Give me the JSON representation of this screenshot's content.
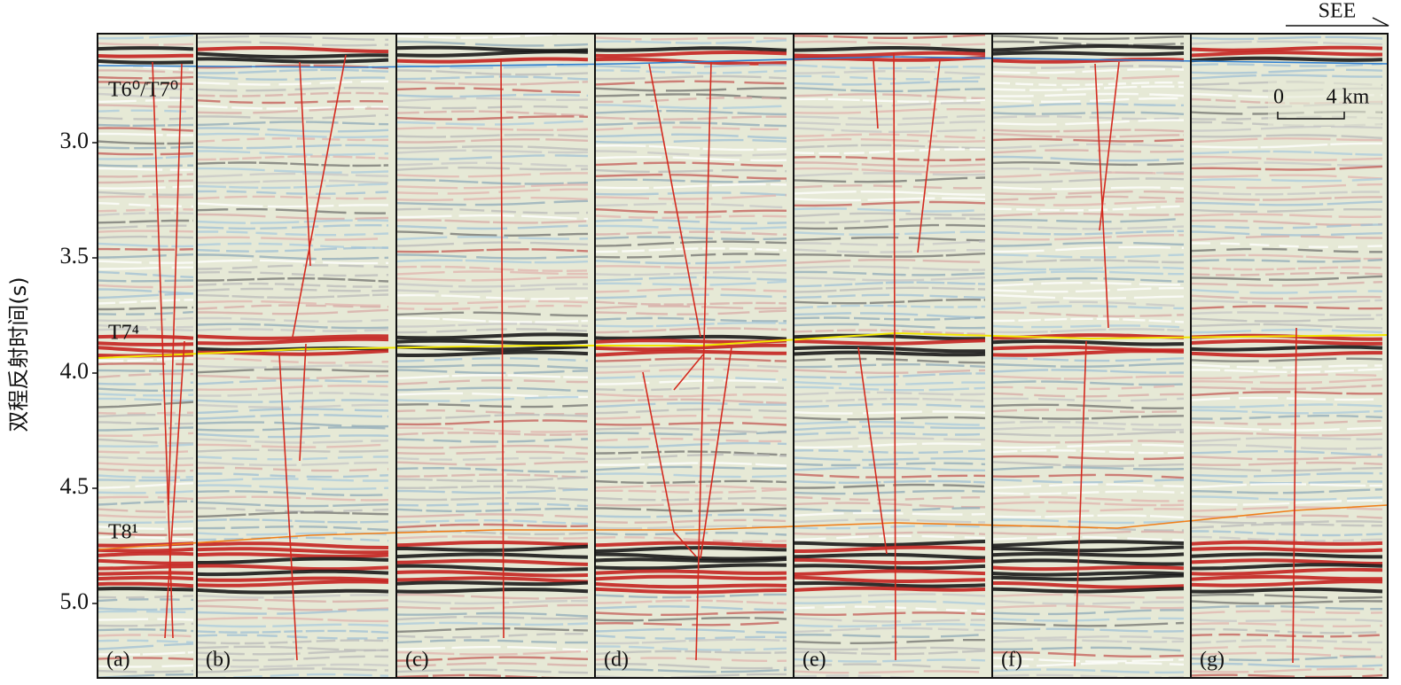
{
  "y_axis": {
    "label": "双程反射时间(s)",
    "ticks": [
      {
        "value": 3,
        "label": "3.0"
      },
      {
        "value": 3.5,
        "label": "3.5"
      },
      {
        "value": 4,
        "label": "4.0"
      },
      {
        "value": 4.5,
        "label": "4.5"
      },
      {
        "value": 5,
        "label": "5.0"
      }
    ]
  },
  "horizons": [
    "T6⁰/T7⁰",
    "T7⁴",
    "T8¹"
  ],
  "panels": [
    "(a)",
    "(b)",
    "(c)",
    "(d)",
    "(e)",
    "(f)",
    "(g)"
  ],
  "scale_bar": {
    "start": "0",
    "end": "4 km"
  },
  "direction": "SEE"
}
